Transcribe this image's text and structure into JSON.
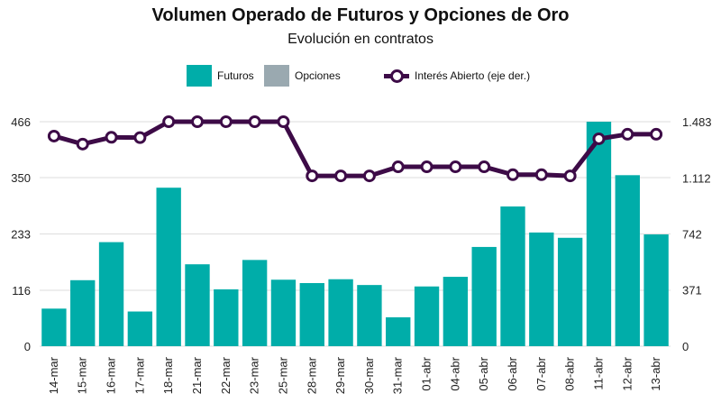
{
  "chart_data": {
    "type": "bar",
    "title": "Volumen Operado de Futuros y Opciones de Oro",
    "subtitle": "Evolución en contratos",
    "categories": [
      "14-mar",
      "15-mar",
      "16-mar",
      "17-mar",
      "18-mar",
      "21-mar",
      "22-mar",
      "23-mar",
      "25-mar",
      "28-mar",
      "29-mar",
      "30-mar",
      "31-mar",
      "01-abr",
      "04-abr",
      "05-abr",
      "06-abr",
      "07-abr",
      "08-abr",
      "11-abr",
      "12-abr",
      "13-abr"
    ],
    "series": [
      {
        "name": "Futuros",
        "kind": "bar",
        "axis": "left",
        "color": "#00ada9",
        "values": [
          78,
          137,
          216,
          72,
          329,
          170,
          118,
          179,
          138,
          131,
          139,
          127,
          60,
          124,
          144,
          206,
          290,
          236,
          225,
          466,
          355,
          232
        ]
      },
      {
        "name": "Opciones",
        "kind": "bar",
        "axis": "left",
        "color": "#9aa9b0",
        "values": [
          0,
          0,
          0,
          0,
          0,
          0,
          0,
          0,
          0,
          0,
          0,
          0,
          0,
          0,
          0,
          0,
          0,
          0,
          0,
          0,
          0,
          0
        ]
      },
      {
        "name": "Interés Abierto (eje der.)",
        "kind": "line",
        "axis": "right",
        "color": "#3d0b47",
        "values": [
          1388,
          1335,
          1380,
          1378,
          1483,
          1483,
          1483,
          1483,
          1483,
          1125,
          1125,
          1125,
          1185,
          1185,
          1185,
          1185,
          1133,
          1133,
          1125,
          1370,
          1400,
          1400
        ]
      }
    ],
    "y_left": {
      "ticks": [
        0,
        116,
        233,
        350,
        466
      ],
      "tick_labels": [
        "0",
        "116",
        "233",
        "350",
        "466"
      ],
      "range": [
        0,
        466
      ]
    },
    "y_right": {
      "ticks": [
        0,
        371,
        742,
        1112,
        1483
      ],
      "tick_labels": [
        "0",
        "371",
        "742",
        "1.112",
        "1.483"
      ],
      "range": [
        0,
        1483
      ]
    },
    "grid": "horizontal",
    "legend_position": "top-center"
  }
}
